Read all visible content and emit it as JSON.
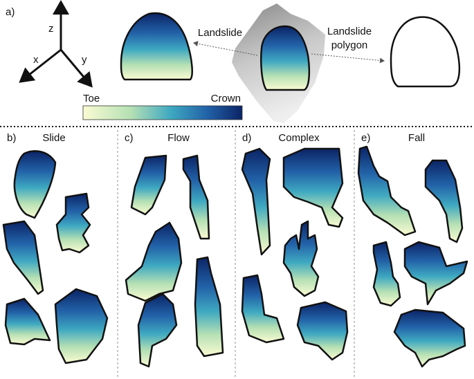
{
  "panel_a": {
    "label": "a)",
    "axes": {
      "z": "z",
      "x": "x",
      "y": "y"
    },
    "landslide_label": "Landslide",
    "polygon_label": [
      "Landslide",
      "polygon"
    ],
    "colorbar": {
      "min_label": "Toe",
      "max_label": "Crown"
    }
  },
  "panels": [
    {
      "label": "b)",
      "title": "Slide"
    },
    {
      "label": "c)",
      "title": "Flow"
    },
    {
      "label": "d)",
      "title": "Complex"
    },
    {
      "label": "e)",
      "title": "Fall"
    }
  ]
}
